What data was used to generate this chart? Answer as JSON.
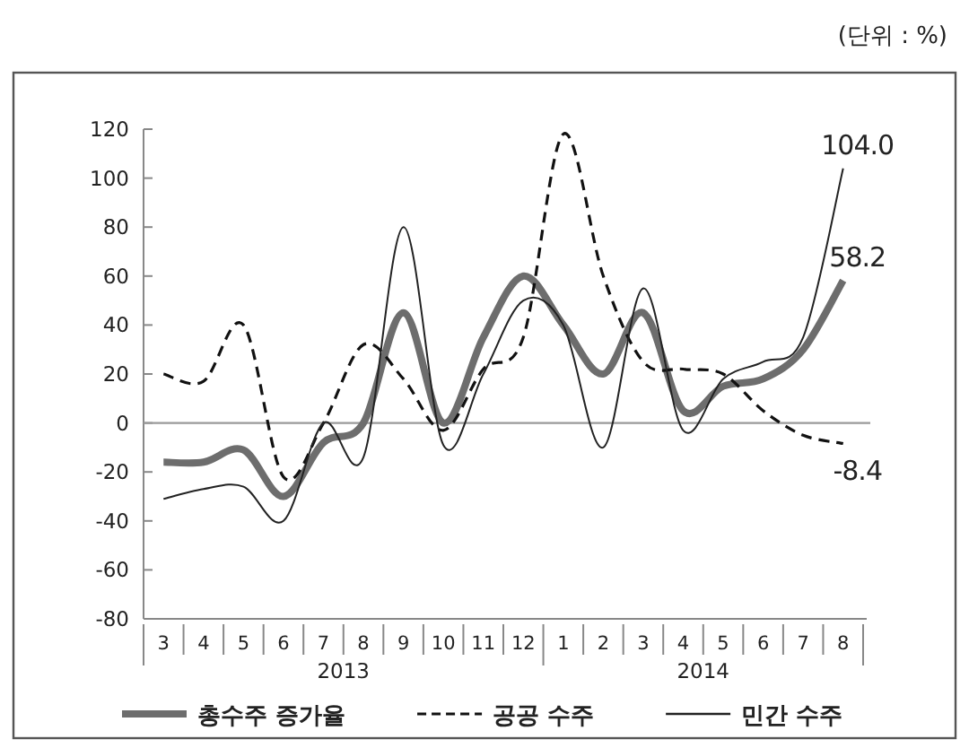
{
  "chart_data": {
    "type": "line",
    "categories": [
      "3",
      "4",
      "5",
      "6",
      "7",
      "8",
      "9",
      "10",
      "11",
      "12",
      "1",
      "2",
      "3",
      "4",
      "5",
      "6",
      "7",
      "8"
    ],
    "series": [
      {
        "name": "총수주 증가율",
        "color": "#6d6d6d",
        "line_style": "solid",
        "values": [
          -16,
          -16,
          -11,
          -30,
          -8,
          0,
          45,
          0,
          35,
          60,
          40,
          20,
          45,
          5,
          15,
          18,
          30,
          58.2
        ],
        "value_labels": [
          null,
          null,
          null,
          null,
          null,
          null,
          null,
          null,
          null,
          null,
          null,
          null,
          null,
          null,
          null,
          null,
          null,
          "58.2"
        ]
      },
      {
        "name": "공공 수주",
        "color": "#111111",
        "line_style": "dashed",
        "values": [
          20,
          17,
          40,
          -22,
          0,
          32,
          18,
          -3,
          22,
          35,
          118,
          60,
          25,
          22,
          20,
          5,
          -5,
          -8.4
        ],
        "value_labels": [
          null,
          null,
          null,
          null,
          null,
          null,
          null,
          null,
          null,
          null,
          null,
          null,
          null,
          null,
          null,
          null,
          null,
          "-8.4"
        ]
      },
      {
        "name": "민간 수주",
        "color": "#222222",
        "line_style": "solid",
        "values": [
          -31,
          -27,
          -26,
          -40,
          0,
          -14,
          80,
          -9,
          20,
          50,
          40,
          -10,
          55,
          -3,
          18,
          25,
          35,
          104
        ],
        "value_labels": [
          null,
          null,
          null,
          null,
          null,
          null,
          null,
          null,
          null,
          null,
          null,
          null,
          null,
          null,
          null,
          null,
          null,
          "104.0"
        ]
      }
    ],
    "ylim": [
      -80,
      120
    ],
    "yticks": [
      -80,
      -60,
      -40,
      -20,
      0,
      20,
      40,
      60,
      80,
      100,
      120
    ],
    "ref_lines": [
      {
        "axis": "y",
        "value": 0,
        "color": "#9a9a9a"
      }
    ],
    "annotations": [
      "(단위 : %)",
      "2013",
      "2014"
    ],
    "legend": "bottom",
    "marker": "none"
  }
}
